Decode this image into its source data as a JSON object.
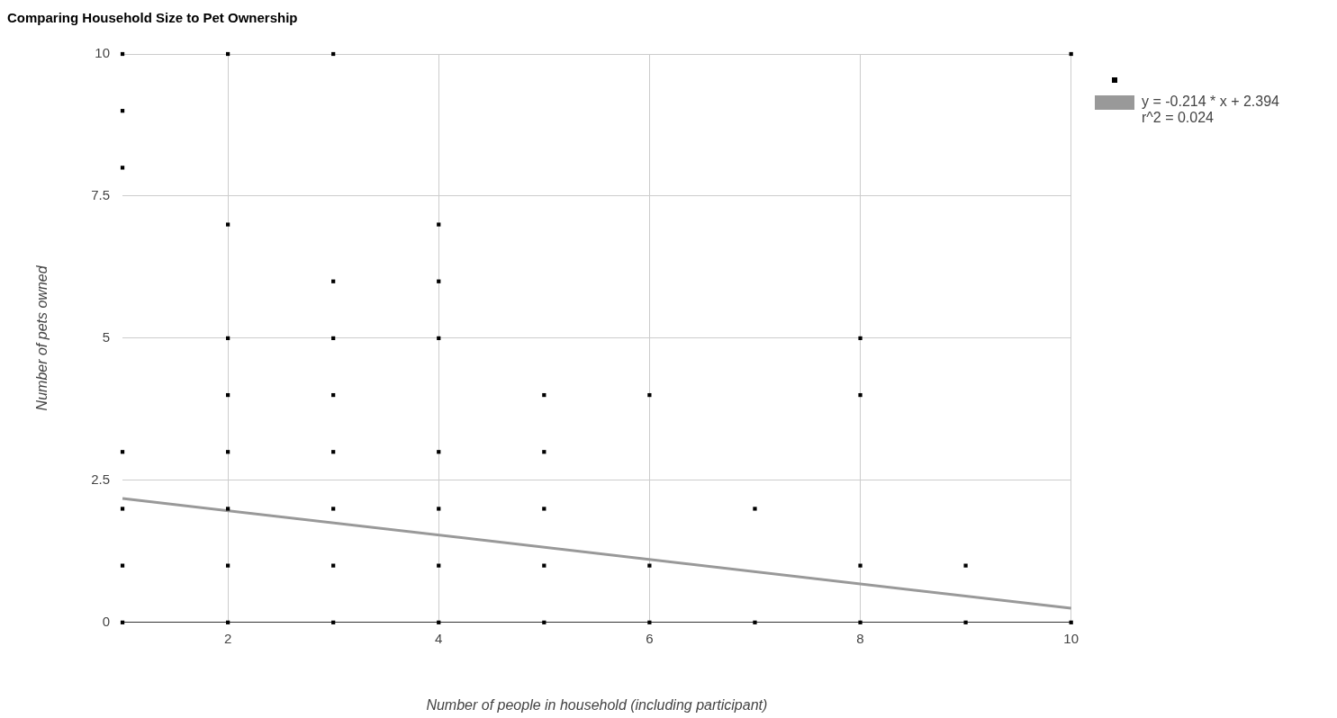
{
  "chart_data": {
    "type": "scatter",
    "title": "Comparing Household Size to Pet Ownership",
    "xlabel": "Number of people in household (including participant)",
    "ylabel": "Number of pets owned",
    "xlim": [
      1,
      10
    ],
    "xticks": [
      2,
      4,
      6,
      8,
      10
    ],
    "ylim": [
      0,
      10
    ],
    "yticks": [
      0,
      2.5,
      5,
      7.5,
      10
    ],
    "grid": true,
    "legend": "top right",
    "series": [
      {
        "marker": "square",
        "color": "#000000",
        "x": [
          1,
          1,
          1,
          1,
          1,
          1,
          1,
          2,
          2,
          2,
          2,
          2,
          2,
          2,
          2,
          3,
          3,
          3,
          3,
          3,
          3,
          3,
          3,
          4,
          4,
          4,
          4,
          4,
          4,
          4,
          5,
          5,
          5,
          5,
          5,
          6,
          6,
          6,
          7,
          7,
          8,
          8,
          8,
          8,
          9,
          9,
          10,
          10
        ],
        "values": [
          10,
          9,
          8,
          3,
          2,
          1,
          0,
          10,
          7,
          5,
          4,
          3,
          2,
          1,
          0,
          10,
          6,
          5,
          4,
          3,
          2,
          1,
          0,
          7,
          6,
          5,
          3,
          2,
          1,
          0,
          4,
          3,
          2,
          1,
          0,
          4,
          1,
          0,
          2,
          0,
          5,
          4,
          1,
          0,
          1,
          0,
          10,
          0
        ]
      },
      {
        "type": "line",
        "name": "y = -0.214 * x + 2.394\nr^2 = 0.024",
        "color": "#999999",
        "x": [
          1,
          10
        ],
        "values": [
          2.18,
          0.25
        ]
      }
    ]
  }
}
